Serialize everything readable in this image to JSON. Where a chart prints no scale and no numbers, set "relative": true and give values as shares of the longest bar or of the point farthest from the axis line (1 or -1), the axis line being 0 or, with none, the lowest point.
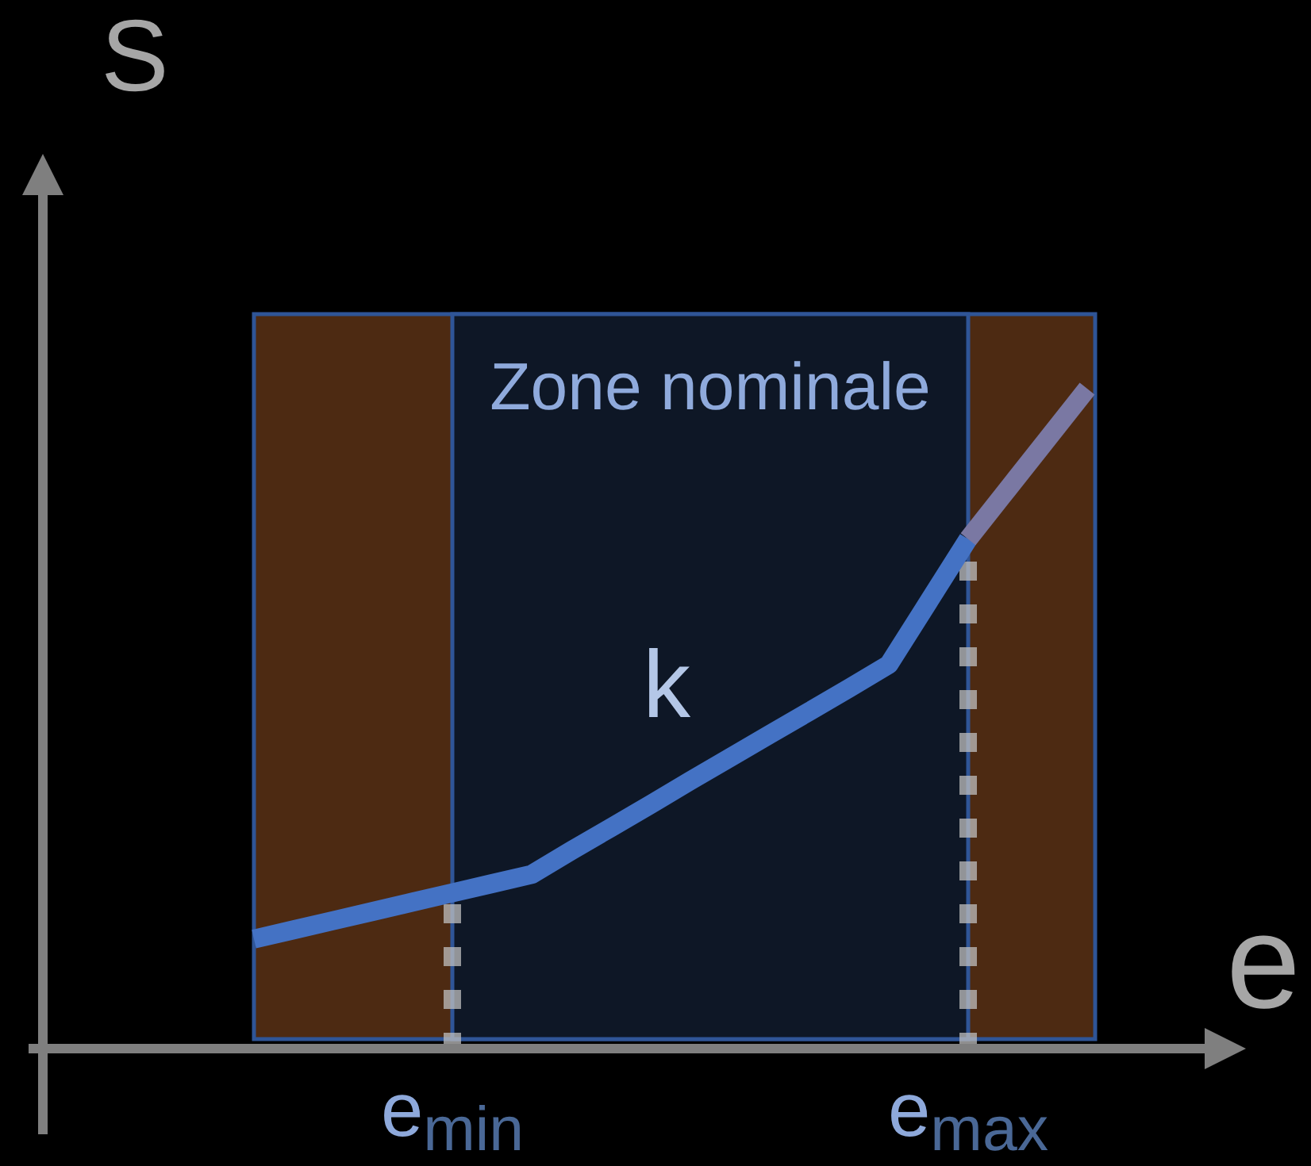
{
  "chart_data": {
    "type": "line",
    "xlabel": "e",
    "ylabel": "S",
    "relative": true,
    "categories": [
      null,
      null,
      null,
      null,
      null,
      "e$_{min}$",
      null,
      null,
      null,
      null,
      null,
      null,
      null,
      null,
      null,
      null,
      null,
      null,
      "e$_{max}$",
      null,
      null,
      null
    ],
    "series": [
      {
        "color": "#4472c4",
        "values": [
          0.166,
          0.18,
          0.194,
          0.208,
          0.222,
          0.236,
          0.25,
          0.264,
          0.3,
          0.335,
          0.37,
          0.406,
          0.441,
          0.476,
          0.511,
          0.546,
          0.582,
          0.677,
          0.772,
          null,
          null,
          null
        ]
      },
      {
        "color": "#7a78a3",
        "values": [
          null,
          null,
          null,
          null,
          null,
          null,
          null,
          null,
          null,
          null,
          null,
          null,
          null,
          null,
          null,
          null,
          null,
          null,
          0.772,
          0.848,
          0.924,
          1
        ]
      }
    ],
    "bands": [
      {
        "axis": "x",
        "from": "e$_{min}$",
        "to": "e$_{max}$",
        "label": "Zone nominale",
        "color": "#0e1726"
      }
    ],
    "ref_lines": [
      {
        "axis": "x",
        "value": "e$_{min}$",
        "color": "#bfbfbf",
        "line_style": "dashed"
      },
      {
        "axis": "x",
        "value": "e$_{max}$",
        "color": "#bfbfbf",
        "line_style": "dashed"
      }
    ],
    "annotations": [
      "k"
    ],
    "line_style": "solid"
  }
}
